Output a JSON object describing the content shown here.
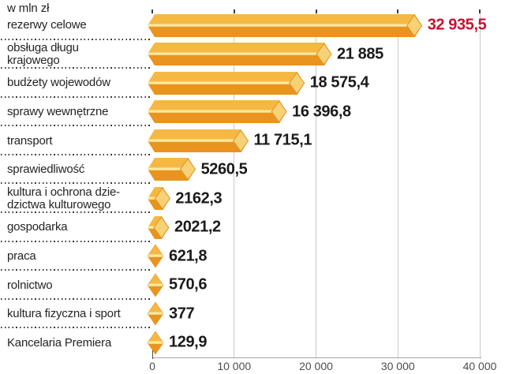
{
  "header": {
    "unit_label": "w mln zł"
  },
  "chart_data": {
    "type": "bar",
    "orientation": "horizontal",
    "title": "w mln zł",
    "categories": [
      "rezerwy celowe",
      "obsługa długu krajowego",
      "budżety wojewodów",
      "sprawy wewnętrzne",
      "transport",
      "sprawiedliwość",
      "kultura i ochrona dziedzictwa kulturowego",
      "gospodarka",
      "praca",
      "rolnictwo",
      "kultura fizyczna i sport",
      "Kancelaria Premiera"
    ],
    "category_lines": [
      [
        "rezerwy celowe"
      ],
      [
        "obsługa długu",
        "krajowego"
      ],
      [
        "budżety wojewodów"
      ],
      [
        "sprawy wewnętrzne"
      ],
      [
        "transport"
      ],
      [
        "sprawiedliwość"
      ],
      [
        "kultura i ochrona dzie-",
        "dzictwa kulturowego"
      ],
      [
        "gospodarka"
      ],
      [
        "praca"
      ],
      [
        "rolnictwo"
      ],
      [
        "kultura fizyczna i sport"
      ],
      [
        "Kancelaria Premiera"
      ]
    ],
    "values": [
      32935.5,
      21885,
      18575.4,
      16396.8,
      11715.1,
      5260.5,
      2162.3,
      2021.2,
      621.8,
      570.6,
      377,
      129.9
    ],
    "value_labels": [
      "32 935,5",
      "21 885",
      "18 575,4",
      "16 396,8",
      "11 715,1",
      "5260,5",
      "2162,3",
      "2021,2",
      "621,8",
      "570,6",
      "377",
      "129,9"
    ],
    "highlight_index": 0,
    "xlim": [
      0,
      40000
    ],
    "x_ticks": [
      0,
      10000,
      20000,
      30000,
      40000
    ],
    "x_tick_labels": [
      "0",
      "10 000",
      "20 000",
      "30 000",
      "40 000"
    ],
    "grid": true,
    "legend": false,
    "colors": {
      "bar_top": "#F5B843",
      "bar_highlight": "#FAE8A0",
      "bar_bottom": "#E8941F",
      "bar_tip": "#F6D176",
      "bar_edge": "#E0921F",
      "value_default": "#1A1A1A",
      "value_highlight": "#C51230",
      "grid": "#C9C9C9",
      "axis": "#A3A3A3",
      "label": "#242424",
      "tick_label": "#4D4D4D"
    }
  }
}
